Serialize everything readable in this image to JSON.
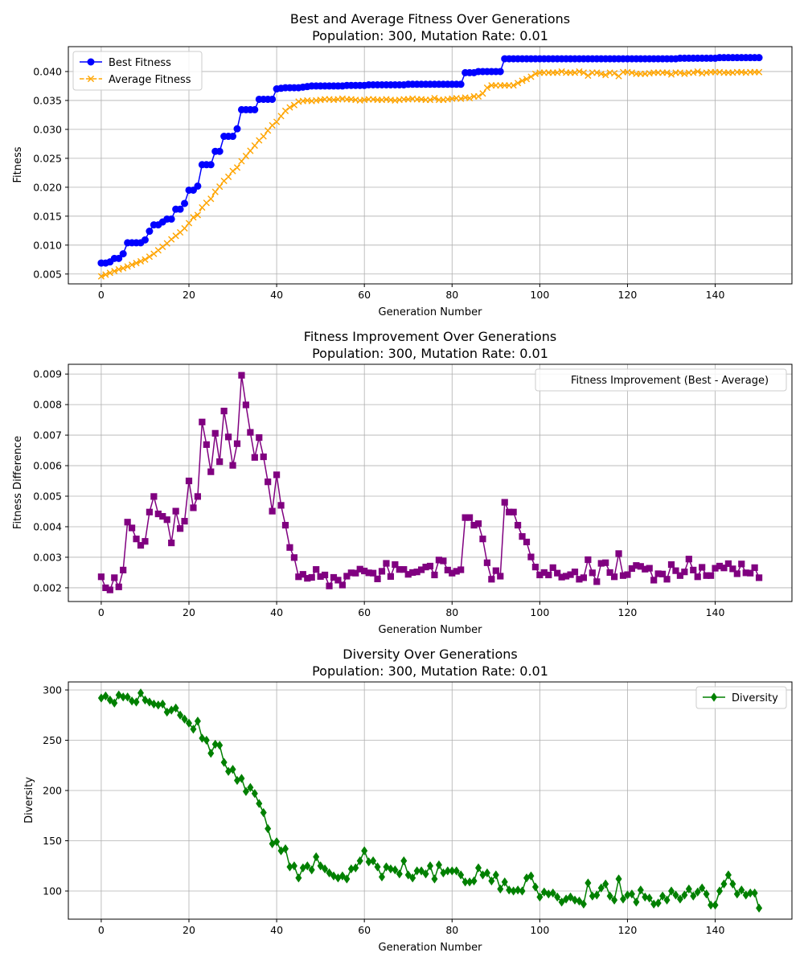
{
  "chart_data": [
    {
      "type": "line",
      "title": "Best and Average Fitness Over Generations",
      "subtitle": "Population: 300, Mutation Rate: 0.01",
      "xlabel": "Generation Number",
      "ylabel": "Fitness",
      "xlim": [
        -7.5,
        157.5
      ],
      "ylim": [
        0.0033,
        0.0443
      ],
      "xticks": [
        0,
        20,
        40,
        60,
        80,
        100,
        120,
        140
      ],
      "yticks": [
        0.005,
        0.01,
        0.015,
        0.02,
        0.025,
        0.03,
        0.035,
        0.04
      ],
      "ytick_labels": [
        "0.005",
        "0.010",
        "0.015",
        "0.020",
        "0.025",
        "0.030",
        "0.035",
        "0.040"
      ],
      "grid": true,
      "legend_position": "top-left",
      "series": [
        {
          "name": "Best Fitness",
          "color": "#0000ff",
          "marker": "circle",
          "values": [
            0.0069,
            0.0069,
            0.0071,
            0.0077,
            0.0077,
            0.0085,
            0.0104,
            0.0104,
            0.0104,
            0.0104,
            0.0109,
            0.0124,
            0.0135,
            0.0135,
            0.014,
            0.0145,
            0.0145,
            0.0162,
            0.0162,
            0.0172,
            0.0195,
            0.0195,
            0.0202,
            0.0239,
            0.0239,
            0.0239,
            0.0262,
            0.0262,
            0.0288,
            0.0288,
            0.0288,
            0.0301,
            0.0334,
            0.0334,
            0.0334,
            0.0334,
            0.0352,
            0.0352,
            0.0352,
            0.0352,
            0.037,
            0.0371,
            0.0372,
            0.0372,
            0.0372,
            0.0372,
            0.0373,
            0.0374,
            0.0375,
            0.0375,
            0.0375,
            0.0375,
            0.0375,
            0.0375,
            0.0375,
            0.0375,
            0.0376,
            0.0376,
            0.0376,
            0.0376,
            0.0376,
            0.0377,
            0.0377,
            0.0377,
            0.0377,
            0.0377,
            0.0377,
            0.0377,
            0.0377,
            0.0377,
            0.0378,
            0.0378,
            0.0378,
            0.0378,
            0.0378,
            0.0378,
            0.0378,
            0.0378,
            0.0378,
            0.0378,
            0.0378,
            0.0378,
            0.0378,
            0.0398,
            0.0398,
            0.0398,
            0.04,
            0.04,
            0.04,
            0.04,
            0.04,
            0.04,
            0.0422,
            0.0422,
            0.0422,
            0.0422,
            0.0422,
            0.0422,
            0.0422,
            0.0422,
            0.0422,
            0.0422,
            0.0422,
            0.0422,
            0.0422,
            0.0422,
            0.0422,
            0.0422,
            0.0422,
            0.0422,
            0.0422,
            0.0422,
            0.0422,
            0.0422,
            0.0422,
            0.0422,
            0.0422,
            0.0422,
            0.0422,
            0.0422,
            0.0422,
            0.0422,
            0.0422,
            0.0422,
            0.0422,
            0.0422,
            0.0422,
            0.0422,
            0.0422,
            0.0422,
            0.0422,
            0.0422,
            0.0423,
            0.0423,
            0.0423,
            0.0423,
            0.0423,
            0.0423,
            0.0423,
            0.0423,
            0.0423,
            0.0424,
            0.0424,
            0.0424,
            0.0424,
            0.0424,
            0.0424,
            0.0424,
            0.0424,
            0.0424,
            0.0424
          ]
        },
        {
          "name": "Average Fitness",
          "color": "#ffa500",
          "marker": "x",
          "linestyle": "dashed",
          "values": [
            0.0046,
            0.0049,
            0.0052,
            0.0055,
            0.0058,
            0.006,
            0.0063,
            0.0066,
            0.0069,
            0.0072,
            0.0075,
            0.008,
            0.0085,
            0.0091,
            0.0097,
            0.0103,
            0.011,
            0.0116,
            0.0122,
            0.0129,
            0.0138,
            0.0148,
            0.0152,
            0.0165,
            0.0173,
            0.018,
            0.0192,
            0.0201,
            0.0211,
            0.0218,
            0.0228,
            0.0234,
            0.0245,
            0.0254,
            0.0263,
            0.0272,
            0.0281,
            0.0288,
            0.0298,
            0.0307,
            0.0313,
            0.0323,
            0.0332,
            0.0338,
            0.0342,
            0.0348,
            0.0349,
            0.035,
            0.0349,
            0.035,
            0.0351,
            0.0352,
            0.0352,
            0.0351,
            0.0352,
            0.0353,
            0.0352,
            0.0352,
            0.0351,
            0.035,
            0.0351,
            0.0352,
            0.0352,
            0.0351,
            0.0351,
            0.0352,
            0.0351,
            0.035,
            0.0351,
            0.0352,
            0.0352,
            0.0353,
            0.0352,
            0.0352,
            0.0351,
            0.0351,
            0.0354,
            0.0351,
            0.0351,
            0.0352,
            0.0353,
            0.0354,
            0.0353,
            0.0355,
            0.0354,
            0.0357,
            0.0357,
            0.0362,
            0.0372,
            0.0376,
            0.0376,
            0.0376,
            0.0376,
            0.0376,
            0.0376,
            0.038,
            0.0384,
            0.0387,
            0.0391,
            0.0396,
            0.0398,
            0.0398,
            0.0398,
            0.0398,
            0.0398,
            0.04,
            0.0398,
            0.0398,
            0.0398,
            0.04,
            0.0398,
            0.0393,
            0.0398,
            0.0398,
            0.0396,
            0.0394,
            0.0398,
            0.0397,
            0.0392,
            0.0399,
            0.0399,
            0.0398,
            0.0396,
            0.0396,
            0.0396,
            0.0397,
            0.0398,
            0.0398,
            0.0398,
            0.0398,
            0.0395,
            0.0398,
            0.0398,
            0.0396,
            0.0398,
            0.0398,
            0.04,
            0.0397,
            0.0398,
            0.0399,
            0.0399,
            0.0399,
            0.0398,
            0.0398,
            0.0398,
            0.0399,
            0.0399,
            0.0398,
            0.0399,
            0.0399,
            0.0399
          ]
        }
      ]
    },
    {
      "type": "line",
      "title": "Fitness Improvement Over Generations",
      "subtitle": "Population: 300, Mutation Rate: 0.01",
      "xlabel": "Generation Number",
      "ylabel": "Fitness Difference",
      "xlim": [
        -7.5,
        157.5
      ],
      "ylim": [
        0.00155,
        0.00932
      ],
      "xticks": [
        0,
        20,
        40,
        60,
        80,
        100,
        120,
        140
      ],
      "yticks": [
        0.002,
        0.003,
        0.004,
        0.005,
        0.006,
        0.007,
        0.008,
        0.009
      ],
      "ytick_labels": [
        "0.002",
        "0.003",
        "0.004",
        "0.005",
        "0.006",
        "0.007",
        "0.008",
        "0.009"
      ],
      "grid": true,
      "legend_position": "top-right",
      "series": [
        {
          "name": "Fitness Improvement (Best - Average)",
          "color": "#800080",
          "marker": "square",
          "values": [
            0.00236,
            0.002,
            0.00193,
            0.00233,
            0.00203,
            0.00258,
            0.00415,
            0.00396,
            0.0036,
            0.00339,
            0.00352,
            0.00448,
            0.00499,
            0.00442,
            0.00434,
            0.00423,
            0.00347,
            0.00451,
            0.00394,
            0.00418,
            0.0055,
            0.00462,
            0.00499,
            0.00743,
            0.00669,
            0.0058,
            0.00706,
            0.00613,
            0.00779,
            0.00694,
            0.00601,
            0.00672,
            0.00896,
            0.00799,
            0.00709,
            0.00627,
            0.00692,
            0.00629,
            0.00547,
            0.00451,
            0.0057,
            0.0047,
            0.00405,
            0.00332,
            0.00299,
            0.00236,
            0.00244,
            0.00231,
            0.00234,
            0.0026,
            0.00237,
            0.00242,
            0.00206,
            0.00234,
            0.00225,
            0.00209,
            0.00238,
            0.00249,
            0.00248,
            0.00261,
            0.00255,
            0.00249,
            0.00248,
            0.00229,
            0.00254,
            0.0028,
            0.00237,
            0.00276,
            0.0026,
            0.0026,
            0.00244,
            0.0025,
            0.00252,
            0.00259,
            0.00268,
            0.00271,
            0.00242,
            0.00291,
            0.00288,
            0.00258,
            0.00248,
            0.00254,
            0.00259,
            0.0043,
            0.0043,
            0.00405,
            0.0041,
            0.0036,
            0.00282,
            0.00228,
            0.00256,
            0.00238,
            0.0048,
            0.00448,
            0.00448,
            0.00405,
            0.00368,
            0.0035,
            0.00301,
            0.00268,
            0.00242,
            0.0025,
            0.00242,
            0.00266,
            0.00248,
            0.00235,
            0.00238,
            0.00243,
            0.00252,
            0.00228,
            0.00233,
            0.00292,
            0.00249,
            0.0022,
            0.0028,
            0.00282,
            0.0025,
            0.00236,
            0.00312,
            0.0024,
            0.00243,
            0.00263,
            0.00273,
            0.0027,
            0.00261,
            0.00264,
            0.00225,
            0.00246,
            0.00245,
            0.00228,
            0.00276,
            0.00256,
            0.0024,
            0.00252,
            0.00294,
            0.00258,
            0.00236,
            0.00267,
            0.0024,
            0.0024,
            0.00264,
            0.00271,
            0.00265,
            0.00279,
            0.00262,
            0.00246,
            0.00278,
            0.00249,
            0.00248,
            0.00266,
            0.00233
          ]
        }
      ]
    },
    {
      "type": "line",
      "title": "Diversity Over Generations",
      "subtitle": "Population: 300, Mutation Rate: 0.01",
      "xlabel": "Generation Number",
      "ylabel": "Diversity",
      "xlim": [
        -7.5,
        157.5
      ],
      "ylim": [
        72,
        308
      ],
      "xticks": [
        0,
        20,
        40,
        60,
        80,
        100,
        120,
        140
      ],
      "yticks": [
        100,
        150,
        200,
        250,
        300
      ],
      "ytick_labels": [
        "100",
        "150",
        "200",
        "250",
        "300"
      ],
      "grid": true,
      "legend_position": "top-right",
      "series": [
        {
          "name": "Diversity",
          "color": "#008000",
          "marker": "diamond",
          "values": [
            292,
            294,
            290,
            287,
            295,
            293,
            293,
            289,
            288,
            297,
            290,
            288,
            286,
            285,
            286,
            278,
            280,
            282,
            275,
            271,
            267,
            261,
            269,
            252,
            250,
            237,
            246,
            245,
            228,
            219,
            221,
            210,
            212,
            199,
            203,
            197,
            187,
            178,
            162,
            147,
            149,
            140,
            142,
            124,
            125,
            113,
            123,
            125,
            121,
            134,
            125,
            122,
            118,
            115,
            113,
            115,
            112,
            122,
            123,
            130,
            140,
            129,
            130,
            124,
            114,
            124,
            122,
            121,
            117,
            130,
            116,
            113,
            120,
            120,
            117,
            125,
            112,
            126,
            118,
            120,
            120,
            120,
            116,
            109,
            109,
            110,
            123,
            116,
            118,
            110,
            116,
            102,
            109,
            101,
            100,
            101,
            100,
            113,
            115,
            104,
            94,
            99,
            97,
            98,
            94,
            89,
            92,
            94,
            91,
            90,
            87,
            108,
            95,
            96,
            103,
            107,
            95,
            91,
            112,
            92,
            96,
            97,
            89,
            101,
            94,
            93,
            87,
            88,
            95,
            91,
            100,
            96,
            92,
            96,
            102,
            95,
            99,
            103,
            97,
            86,
            86,
            100,
            107,
            116,
            107,
            97,
            101,
            96,
            98,
            98,
            83
          ]
        }
      ]
    }
  ]
}
